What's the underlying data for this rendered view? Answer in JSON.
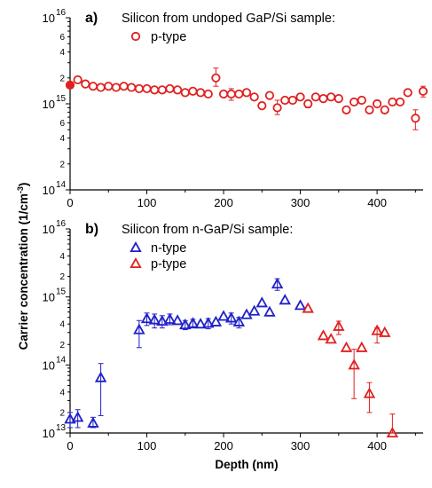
{
  "chart_data": [
    {
      "type": "scatter",
      "panel_label": "a)",
      "title": "Silicon from undoped GaP/Si sample:",
      "xlim": [
        0,
        460
      ],
      "ylim": [
        100000000000000.0,
        1e+16
      ],
      "y_scale": "log",
      "x_ticks": [
        {
          "v": 0,
          "t": "0"
        },
        {
          "v": 100,
          "t": "100"
        },
        {
          "v": 200,
          "t": "200"
        },
        {
          "v": 300,
          "t": "300"
        },
        {
          "v": 400,
          "t": "400"
        }
      ],
      "y_major_ticks": [
        {
          "v": 100000000000000.0,
          "base": "10",
          "exp": "14"
        },
        {
          "v": 1000000000000000.0,
          "base": "10",
          "exp": "15"
        },
        {
          "v": 1e+16,
          "base": "10",
          "exp": "16"
        }
      ],
      "y_minor_tick_values": [
        200000000000000.0,
        300000000000000.0,
        400000000000000.0,
        500000000000000.0,
        600000000000000.0,
        700000000000000.0,
        800000000000000.0,
        900000000000000.0,
        2000000000000000.0,
        3000000000000000.0,
        4000000000000000.0,
        5000000000000000.0,
        6000000000000000.0,
        7000000000000000.0,
        8000000000000000.0,
        9000000000000000.0
      ],
      "y_minor_tick_labels": [
        {
          "v": 200000000000000.0,
          "t": "2"
        },
        {
          "v": 400000000000000.0,
          "t": "4"
        },
        {
          "v": 600000000000000.0,
          "t": "6"
        },
        {
          "v": 2000000000000000.0,
          "t": "2"
        },
        {
          "v": 4000000000000000.0,
          "t": "4"
        },
        {
          "v": 6000000000000000.0,
          "t": "6"
        }
      ],
      "legend_position": "top-left",
      "series": [
        {
          "name": "p-type",
          "marker": "circle",
          "color": "#e02020",
          "points": [
            {
              "x": 0,
              "y": 1650000000000000.0,
              "filled": true
            },
            {
              "x": 10,
              "y": 1900000000000000.0
            },
            {
              "x": 20,
              "y": 1700000000000000.0
            },
            {
              "x": 30,
              "y": 1600000000000000.0
            },
            {
              "x": 40,
              "y": 1550000000000000.0
            },
            {
              "x": 50,
              "y": 1600000000000000.0
            },
            {
              "x": 60,
              "y": 1550000000000000.0
            },
            {
              "x": 70,
              "y": 1600000000000000.0
            },
            {
              "x": 80,
              "y": 1550000000000000.0
            },
            {
              "x": 90,
              "y": 1500000000000000.0
            },
            {
              "x": 100,
              "y": 1500000000000000.0
            },
            {
              "x": 110,
              "y": 1450000000000000.0
            },
            {
              "x": 120,
              "y": 1450000000000000.0
            },
            {
              "x": 130,
              "y": 1500000000000000.0
            },
            {
              "x": 140,
              "y": 1450000000000000.0
            },
            {
              "x": 150,
              "y": 1350000000000000.0
            },
            {
              "x": 160,
              "y": 1400000000000000.0
            },
            {
              "x": 170,
              "y": 1350000000000000.0
            },
            {
              "x": 180,
              "y": 1300000000000000.0
            },
            {
              "x": 190,
              "y": 2000000000000000.0,
              "err": [
                1600000000000000.0,
                2600000000000000.0
              ]
            },
            {
              "x": 200,
              "y": 1300000000000000.0
            },
            {
              "x": 210,
              "y": 1300000000000000.0,
              "err": [
                1100000000000000.0,
                1500000000000000.0
              ]
            },
            {
              "x": 220,
              "y": 1300000000000000.0
            },
            {
              "x": 230,
              "y": 1350000000000000.0
            },
            {
              "x": 240,
              "y": 1200000000000000.0
            },
            {
              "x": 250,
              "y": 950000000000000.0
            },
            {
              "x": 260,
              "y": 1250000000000000.0
            },
            {
              "x": 270,
              "y": 900000000000000.0,
              "err": [
                750000000000000.0,
                1100000000000000.0
              ]
            },
            {
              "x": 280,
              "y": 1100000000000000.0
            },
            {
              "x": 290,
              "y": 1100000000000000.0
            },
            {
              "x": 300,
              "y": 1200000000000000.0
            },
            {
              "x": 310,
              "y": 1000000000000000.0,
              "err": [
                900000000000000.0,
                1100000000000000.0
              ]
            },
            {
              "x": 320,
              "y": 1200000000000000.0
            },
            {
              "x": 330,
              "y": 1150000000000000.0
            },
            {
              "x": 340,
              "y": 1200000000000000.0
            },
            {
              "x": 350,
              "y": 1150000000000000.0
            },
            {
              "x": 360,
              "y": 850000000000000.0
            },
            {
              "x": 370,
              "y": 1050000000000000.0
            },
            {
              "x": 380,
              "y": 1100000000000000.0
            },
            {
              "x": 390,
              "y": 850000000000000.0
            },
            {
              "x": 400,
              "y": 1000000000000000.0
            },
            {
              "x": 410,
              "y": 850000000000000.0
            },
            {
              "x": 420,
              "y": 1050000000000000.0
            },
            {
              "x": 430,
              "y": 1050000000000000.0
            },
            {
              "x": 440,
              "y": 1350000000000000.0
            },
            {
              "x": 450,
              "y": 680000000000000.0,
              "err": [
                500000000000000.0,
                850000000000000.0
              ]
            },
            {
              "x": 460,
              "y": 1400000000000000.0,
              "err": [
                1200000000000000.0,
                1600000000000000.0
              ]
            }
          ]
        }
      ]
    },
    {
      "type": "scatter",
      "panel_label": "b)",
      "title": "Silicon from n-GaP/Si sample:",
      "xlabel": "Depth (nm)",
      "xlim": [
        0,
        460
      ],
      "ylim": [
        10000000000000.0,
        1e+16
      ],
      "y_scale": "log",
      "x_ticks": [
        {
          "v": 0,
          "t": "0"
        },
        {
          "v": 100,
          "t": "100"
        },
        {
          "v": 200,
          "t": "200"
        },
        {
          "v": 300,
          "t": "300"
        },
        {
          "v": 400,
          "t": "400"
        }
      ],
      "y_major_ticks": [
        {
          "v": 10000000000000.0,
          "base": "10",
          "exp": "13"
        },
        {
          "v": 100000000000000.0,
          "base": "10",
          "exp": "14"
        },
        {
          "v": 1000000000000000.0,
          "base": "10",
          "exp": "15"
        },
        {
          "v": 1e+16,
          "base": "10",
          "exp": "16"
        }
      ],
      "y_minor_tick_values": [
        20000000000000.0,
        30000000000000.0,
        40000000000000.0,
        50000000000000.0,
        60000000000000.0,
        70000000000000.0,
        80000000000000.0,
        90000000000000.0,
        200000000000000.0,
        300000000000000.0,
        400000000000000.0,
        500000000000000.0,
        600000000000000.0,
        700000000000000.0,
        800000000000000.0,
        900000000000000.0,
        2000000000000000.0,
        3000000000000000.0,
        4000000000000000.0,
        5000000000000000.0,
        6000000000000000.0,
        7000000000000000.0,
        8000000000000000.0,
        9000000000000000.0
      ],
      "y_minor_tick_labels": [
        {
          "v": 20000000000000.0,
          "t": "2"
        },
        {
          "v": 40000000000000.0,
          "t": "4"
        },
        {
          "v": 200000000000000.0,
          "t": "2"
        },
        {
          "v": 400000000000000.0,
          "t": "4"
        },
        {
          "v": 2000000000000000.0,
          "t": "2"
        },
        {
          "v": 4000000000000000.0,
          "t": "4"
        }
      ],
      "legend_position": "top-left",
      "series": [
        {
          "name": "n-type",
          "marker": "triangle",
          "color": "#2020c8",
          "points": [
            {
              "x": 0,
              "y": 16000000000000.0,
              "err": [
                12000000000000.0,
                20000000000000.0
              ]
            },
            {
              "x": 10,
              "y": 17000000000000.0,
              "err": [
                12000000000000.0,
                22000000000000.0
              ]
            },
            {
              "x": 30,
              "y": 14000000000000.0,
              "err": [
                12000000000000.0,
                17000000000000.0
              ]
            },
            {
              "x": 40,
              "y": 65000000000000.0,
              "err": [
                18000000000000.0,
                105000000000000.0
              ]
            },
            {
              "x": 90,
              "y": 330000000000000.0,
              "err": [
                180000000000000.0,
                450000000000000.0
              ]
            },
            {
              "x": 100,
              "y": 480000000000000.0,
              "err": [
                380000000000000.0,
                580000000000000.0
              ]
            },
            {
              "x": 110,
              "y": 460000000000000.0,
              "err": [
                350000000000000.0,
                560000000000000.0
              ]
            },
            {
              "x": 120,
              "y": 440000000000000.0,
              "err": [
                350000000000000.0,
                530000000000000.0
              ]
            },
            {
              "x": 130,
              "y": 470000000000000.0,
              "err": [
                390000000000000.0,
                560000000000000.0
              ]
            },
            {
              "x": 140,
              "y": 450000000000000.0
            },
            {
              "x": 150,
              "y": 390000000000000.0,
              "err": [
                330000000000000.0,
                450000000000000.0
              ]
            },
            {
              "x": 160,
              "y": 410000000000000.0,
              "err": [
                350000000000000.0,
                470000000000000.0
              ]
            },
            {
              "x": 170,
              "y": 400000000000000.0
            },
            {
              "x": 180,
              "y": 410000000000000.0,
              "err": [
                340000000000000.0,
                480000000000000.0
              ]
            },
            {
              "x": 190,
              "y": 430000000000000.0
            },
            {
              "x": 200,
              "y": 520000000000000.0
            },
            {
              "x": 210,
              "y": 490000000000000.0,
              "err": [
                400000000000000.0,
                580000000000000.0
              ]
            },
            {
              "x": 220,
              "y": 430000000000000.0,
              "err": [
                350000000000000.0,
                500000000000000.0
              ]
            },
            {
              "x": 230,
              "y": 550000000000000.0
            },
            {
              "x": 240,
              "y": 620000000000000.0
            },
            {
              "x": 250,
              "y": 820000000000000.0
            },
            {
              "x": 260,
              "y": 600000000000000.0
            },
            {
              "x": 270,
              "y": 1550000000000000.0,
              "err": [
                1250000000000000.0,
                1850000000000000.0
              ]
            },
            {
              "x": 280,
              "y": 900000000000000.0
            },
            {
              "x": 300,
              "y": 750000000000000.0
            }
          ]
        },
        {
          "name": "p-type",
          "marker": "triangle",
          "color": "#e02020",
          "points": [
            {
              "x": 310,
              "y": 680000000000000.0
            },
            {
              "x": 330,
              "y": 270000000000000.0
            },
            {
              "x": 340,
              "y": 240000000000000.0
            },
            {
              "x": 350,
              "y": 370000000000000.0,
              "err": [
                280000000000000.0,
                440000000000000.0
              ]
            },
            {
              "x": 360,
              "y": 180000000000000.0
            },
            {
              "x": 370,
              "y": 100000000000000.0,
              "err": [
                32000000000000.0,
                170000000000000.0
              ]
            },
            {
              "x": 380,
              "y": 180000000000000.0
            },
            {
              "x": 390,
              "y": 38000000000000.0,
              "err": [
                20000000000000.0,
                55000000000000.0
              ]
            },
            {
              "x": 400,
              "y": 320000000000000.0,
              "err": [
                210000000000000.0,
                350000000000000.0
              ]
            },
            {
              "x": 410,
              "y": 300000000000000.0
            },
            {
              "x": 420,
              "y": 10000000000000.0,
              "err": [
                10000000000000.0,
                19000000000000.0
              ]
            }
          ]
        }
      ]
    }
  ],
  "shared_ylabel_prefix": "Carrier concentration (1/cm",
  "shared_ylabel_sup": "-3",
  "shared_ylabel_suffix": ")"
}
